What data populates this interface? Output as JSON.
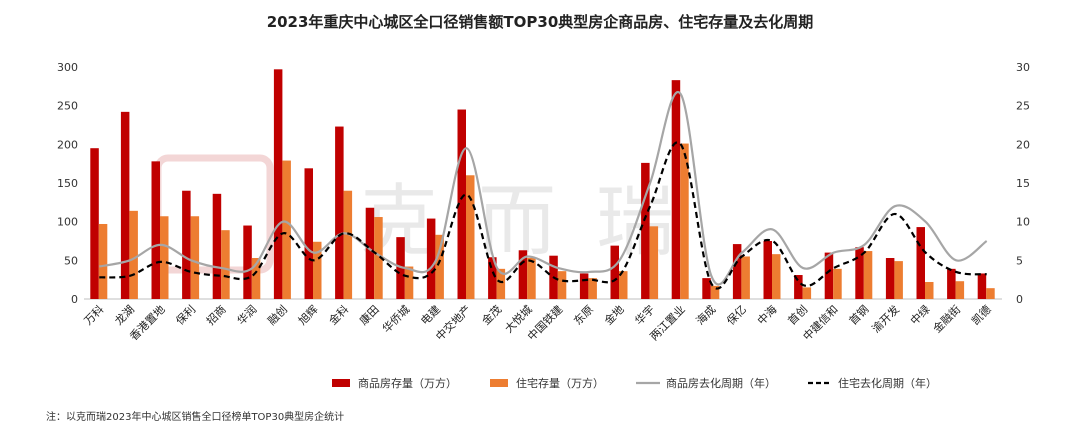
{
  "chart_data": {
    "type": "bar",
    "title": "2023年重庆中心城区全口径销售额TOP30典型房企商品房、住宅存量及去化周期",
    "categories": [
      "万科",
      "龙湖",
      "香港置地",
      "保利",
      "招商",
      "华润",
      "融创",
      "旭辉",
      "金科",
      "康田",
      "华侨城",
      "电建",
      "中交地产",
      "金茂",
      "大悦城",
      "中国铁建",
      "东原",
      "金地",
      "华宇",
      "两江置业",
      "海成",
      "保亿",
      "中海",
      "首创",
      "中建信和",
      "首钢",
      "渝开发",
      "中绿",
      "金融街",
      "凯德"
    ],
    "series": [
      {
        "name": "商品房存量（万方）",
        "type": "bar",
        "axis": "left",
        "color": "#c00000",
        "values": [
          195,
          242,
          178,
          140,
          136,
          95,
          297,
          169,
          223,
          118,
          80,
          104,
          245,
          54,
          63,
          56,
          33,
          69,
          176,
          283,
          27,
          71,
          75,
          31,
          60,
          67,
          53,
          93,
          39,
          33
        ]
      },
      {
        "name": "住宅存量（万方）",
        "type": "bar",
        "axis": "left",
        "color": "#ed7d31",
        "values": [
          97,
          114,
          107,
          107,
          89,
          53,
          179,
          74,
          140,
          106,
          42,
          83,
          160,
          39,
          53,
          36,
          27,
          36,
          94,
          201,
          17,
          55,
          58,
          15,
          39,
          62,
          49,
          22,
          23,
          14
        ]
      },
      {
        "name": "商品房去化周期（年）",
        "type": "line",
        "axis": "right",
        "color": "#a6a6a6",
        "dash": "solid",
        "values": [
          4.2,
          5,
          7,
          5,
          4,
          4,
          10,
          6,
          8.5,
          6,
          4,
          5,
          19.5,
          4,
          5.5,
          4,
          3.5,
          5,
          15,
          26.5,
          3,
          6,
          9,
          4,
          6,
          7,
          12,
          10,
          5,
          7.5
        ]
      },
      {
        "name": "住宅去化周期（年）",
        "type": "line",
        "axis": "right",
        "color": "#000000",
        "dash": "dashed",
        "values": [
          2.8,
          3,
          4.8,
          3.5,
          3,
          3,
          8.5,
          5,
          8.5,
          6,
          3,
          4,
          13.5,
          2.5,
          5,
          2.5,
          2.5,
          3,
          12,
          20,
          2,
          5.5,
          7.5,
          1.8,
          4,
          6,
          11,
          6,
          3.5,
          3.2
        ]
      }
    ],
    "left_axis": {
      "ticks": [
        "0",
        "50",
        "100",
        "150",
        "200",
        "250",
        "300"
      ],
      "ylim": [
        0,
        300
      ]
    },
    "right_axis": {
      "ticks": [
        "0",
        "5",
        "10",
        "15",
        "20",
        "25",
        "30"
      ],
      "ylim": [
        0,
        30
      ]
    },
    "grid": false,
    "legend_position": "bottom"
  },
  "watermark": {
    "text": "克而瑞"
  },
  "footnote": "注：以克而瑞2023年中心城区销售全口径榜单TOP30典型房企统计"
}
